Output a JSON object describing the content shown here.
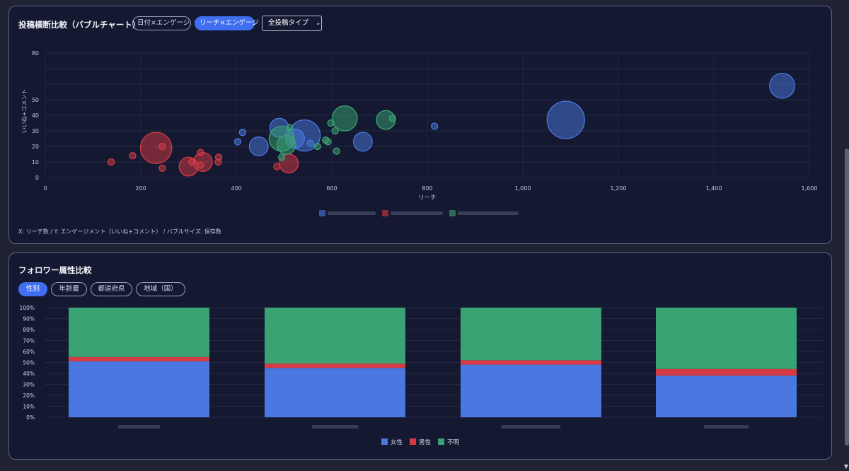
{
  "bubble_panel": {
    "title": "投稿横断比較（バブルチャート）",
    "tabs": [
      {
        "label": "日付×エンゲージ",
        "active": false
      },
      {
        "label": "リーチ×エンゲージ",
        "active": true
      }
    ],
    "select": {
      "value": "全投稿タイプ"
    },
    "footnote": "X: リーチ数 / Y: エンゲージメント（いいね+コメント） / バブルサイズ: 保存数"
  },
  "attr_panel": {
    "title": "フォロワー属性比較",
    "tabs": [
      {
        "label": "性別",
        "active": true
      },
      {
        "label": "年齢層",
        "active": false
      },
      {
        "label": "都道府県",
        "active": false
      },
      {
        "label": "地域（国）",
        "active": false
      }
    ]
  },
  "colors": {
    "blue": "#4a78e0",
    "red": "#d63a42",
    "green": "#3aa373"
  },
  "chart_data": [
    {
      "type": "scatter",
      "title": "",
      "xlabel": "リーチ",
      "ylabel": "いいね+コメント",
      "xlim": [
        0,
        1600
      ],
      "ylim": [
        0,
        80
      ],
      "xticks": [
        0,
        200,
        400,
        600,
        800,
        1000,
        1200,
        1400,
        1600
      ],
      "xtick_labels": [
        "0",
        "200",
        "400",
        "600",
        "800",
        "1,000",
        "1,200",
        "1,400",
        "1,600"
      ],
      "yticks": [
        0,
        10,
        20,
        30,
        40,
        50,
        60,
        70,
        80
      ],
      "yticks_shown": [
        0,
        10,
        20,
        30,
        40,
        50,
        80
      ],
      "series": [
        {
          "color": "blue",
          "points": [
            {
              "x": 1543,
              "y": 59,
              "size": 4
            },
            {
              "x": 1090,
              "y": 37,
              "size": 6
            },
            {
              "x": 815,
              "y": 33,
              "size": 1
            },
            {
              "x": 665,
              "y": 23,
              "size": 3
            },
            {
              "x": 543,
              "y": 27,
              "size": 5
            },
            {
              "x": 523,
              "y": 25,
              "size": 3
            },
            {
              "x": 490,
              "y": 32,
              "size": 3
            },
            {
              "x": 447,
              "y": 20,
              "size": 3
            },
            {
              "x": 413,
              "y": 29,
              "size": 1
            },
            {
              "x": 403,
              "y": 23,
              "size": 1
            },
            {
              "x": 555,
              "y": 22,
              "size": 1
            }
          ]
        },
        {
          "color": "red",
          "points": [
            {
              "x": 232,
              "y": 19,
              "size": 5
            },
            {
              "x": 245,
              "y": 20,
              "size": 1
            },
            {
              "x": 138,
              "y": 10,
              "size": 1
            },
            {
              "x": 183,
              "y": 14,
              "size": 1
            },
            {
              "x": 245,
              "y": 6,
              "size": 1
            },
            {
              "x": 300,
              "y": 7,
              "size": 3
            },
            {
              "x": 330,
              "y": 10,
              "size": 3
            },
            {
              "x": 325,
              "y": 8,
              "size": 1
            },
            {
              "x": 325,
              "y": 16,
              "size": 1
            },
            {
              "x": 362,
              "y": 10,
              "size": 1
            },
            {
              "x": 363,
              "y": 13,
              "size": 1
            },
            {
              "x": 510,
              "y": 9,
              "size": 3
            },
            {
              "x": 485,
              "y": 7,
              "size": 1
            },
            {
              "x": 307,
              "y": 10,
              "size": 1
            }
          ]
        },
        {
          "color": "green",
          "points": [
            {
              "x": 627,
              "y": 38,
              "size": 4
            },
            {
              "x": 713,
              "y": 37,
              "size": 3
            },
            {
              "x": 727,
              "y": 38,
              "size": 1
            },
            {
              "x": 495,
              "y": 25,
              "size": 4
            },
            {
              "x": 505,
              "y": 21,
              "size": 3
            },
            {
              "x": 512,
              "y": 32,
              "size": 1
            },
            {
              "x": 598,
              "y": 35,
              "size": 1
            },
            {
              "x": 607,
              "y": 30,
              "size": 1
            },
            {
              "x": 587,
              "y": 24,
              "size": 1
            },
            {
              "x": 592,
              "y": 23,
              "size": 1
            },
            {
              "x": 570,
              "y": 20,
              "size": 1
            },
            {
              "x": 610,
              "y": 17,
              "size": 1
            },
            {
              "x": 495,
              "y": 13,
              "size": 1
            }
          ]
        }
      ]
    },
    {
      "type": "bar",
      "stacked": true,
      "ylim": [
        0,
        100
      ],
      "yticks": [
        "0%",
        "10%",
        "20%",
        "30%",
        "40%",
        "50%",
        "60%",
        "70%",
        "80%",
        "90%",
        "100%"
      ],
      "categories": [
        "",
        "",
        "",
        ""
      ],
      "series": [
        {
          "name": "女性",
          "color": "blue",
          "values": [
            51,
            45,
            48,
            38
          ]
        },
        {
          "name": "男性",
          "color": "red",
          "values": [
            4,
            4,
            4,
            6
          ]
        },
        {
          "name": "不明",
          "color": "green",
          "values": [
            45,
            51,
            48,
            56
          ]
        }
      ]
    }
  ]
}
